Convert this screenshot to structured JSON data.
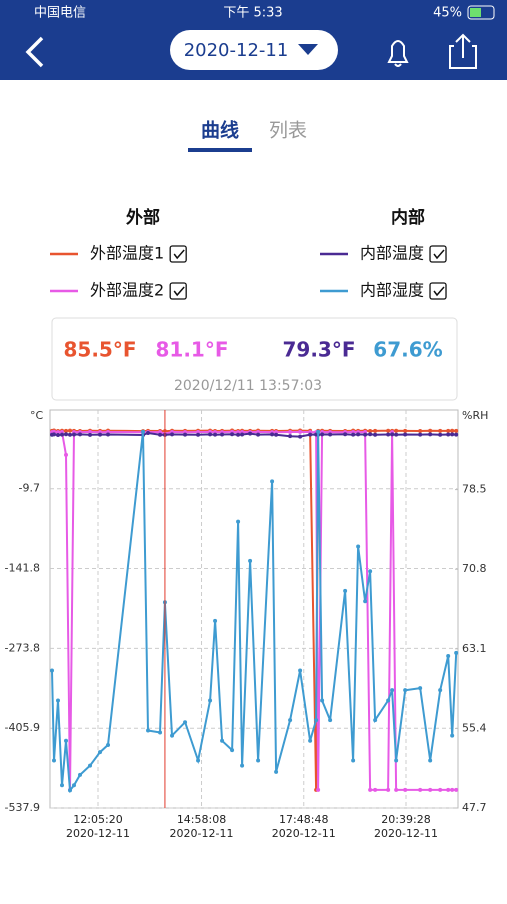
{
  "status_bar": {
    "carrier": "中国电信",
    "time": "下午 5:33",
    "battery": "45%"
  },
  "header": {
    "date": "2020-12-11"
  },
  "tabs": [
    "曲线",
    "列表"
  ],
  "legend": {
    "external_title": "外部",
    "internal_title": "内部"
  },
  "readout": {
    "values": [
      "85.5°F",
      "81.1°F",
      "79.3°F",
      "67.6%"
    ],
    "timestamp": "2020/12/11 13:57:03"
  },
  "chart_data": {
    "type": "line",
    "y_label": "°C",
    "y2_label": "%RH",
    "ylim": [
      -537.9,
      120.5
    ],
    "yticks": [
      -537.9,
      -405.9,
      -273.8,
      -141.8,
      -9.7
    ],
    "y2lim": [
      47.7,
      86.2
    ],
    "y2ticks": [
      47.7,
      55.4,
      63.1,
      70.8,
      78.5
    ],
    "xlim": [
      "2020-12-11T10:45:12",
      "2020-12-11T22:06:16"
    ],
    "xticks": [
      {
        "value": "2020-12-11T12:05:20",
        "label": "12:05:20",
        "sublabel": "2020-12-11"
      },
      {
        "value": "2020-12-11T14:58:08",
        "label": "14:58:08",
        "sublabel": "2020-12-11"
      },
      {
        "value": "2020-12-11T17:48:48",
        "label": "17:48:48",
        "sublabel": "2020-12-11"
      },
      {
        "value": "2020-12-11T20:39:28",
        "label": "20:39:28",
        "sublabel": "2020-12-11"
      }
    ],
    "grid": true,
    "cursor": "2020-12-11T13:57:03",
    "cursor_color": "#e0392b",
    "x": [
      "2020-12-11T10:48:32",
      "2020-12-11T10:51:53",
      "2020-12-11T10:58:34",
      "2020-12-11T11:05:14",
      "2020-12-11T11:11:55",
      "2020-12-11T11:18:36",
      "2020-12-11T11:25:17",
      "2020-12-11T11:35:18",
      "2020-12-11T11:52:00",
      "2020-12-11T12:08:42",
      "2020-12-11T12:22:04",
      "2020-12-11T13:20:31",
      "2020-12-11T13:28:52",
      "2020-12-11T13:48:54",
      "2020-12-11T13:57:03",
      "2020-12-11T14:08:56",
      "2020-12-11T14:30:39",
      "2020-12-11T14:52:22",
      "2020-12-11T15:12:24",
      "2020-12-11T15:20:45",
      "2020-12-11T15:32:26",
      "2020-12-11T15:49:08",
      "2020-12-11T15:59:10",
      "2020-12-11T16:05:50",
      "2020-12-11T16:19:12",
      "2020-12-11T16:32:34",
      "2020-12-11T16:55:56",
      "2020-12-11T17:02:37",
      "2020-12-11T17:26:00",
      "2020-12-11T17:42:42",
      "2020-12-11T17:59:24",
      "2020-12-11T18:09:25",
      "2020-12-11T18:12:46",
      "2020-12-11T18:19:26",
      "2020-12-11T18:32:48",
      "2020-12-11T18:57:51",
      "2020-12-11T19:11:13",
      "2020-12-11T19:19:34",
      "2020-12-11T19:31:15",
      "2020-12-11T19:39:36",
      "2020-12-11T19:47:57",
      "2020-12-11T20:09:40",
      "2020-12-11T20:16:20",
      "2020-12-11T20:23:01",
      "2020-12-11T20:38:03",
      "2020-12-11T21:03:06",
      "2020-12-11T21:19:48",
      "2020-12-11T21:36:30",
      "2020-12-11T21:49:52",
      "2020-12-11T21:56:32",
      "2020-12-11T22:03:13"
    ],
    "series": [
      {
        "name": "外部温度1",
        "color": "#e8542f",
        "values": [
          86,
          86.5,
          85.8,
          86.2,
          85.9,
          86.4,
          86,
          85.7,
          86.1,
          85.9,
          86.3,
          85.6,
          86,
          85.8,
          85.5,
          86.1,
          85.9,
          86.2,
          86.4,
          85.8,
          86,
          86.5,
          85.7,
          86.1,
          85.9,
          86.3,
          86,
          85.8,
          86.2,
          86.5,
          86.1,
          -508,
          85.9,
          86.2,
          86,
          85.7,
          86.3,
          85.9,
          86.1,
          85.8,
          86,
          86.2,
          85.9,
          86.1,
          86,
          85.8,
          86.2,
          86,
          85.9,
          86.1,
          86
        ]
      },
      {
        "name": "外部温度2",
        "color": "#e75ae6",
        "values": [
          84,
          84.5,
          83.8,
          84.2,
          46.2,
          -508,
          83.9,
          84,
          84.3,
          83.8,
          84.1,
          83.6,
          84,
          83.9,
          81.1,
          84.2,
          83.8,
          84.1,
          84.3,
          83.9,
          84,
          84.4,
          83.8,
          84.1,
          83.9,
          84.2,
          84,
          83.8,
          84.1,
          84.3,
          84,
          83.9,
          -508,
          84.1,
          84,
          83.8,
          84.2,
          83.9,
          84.1,
          -508,
          -508,
          -508,
          84,
          -508,
          -508,
          -508,
          -508,
          -508,
          -508,
          -508,
          -508
        ]
      },
      {
        "name": "内部温度",
        "color": "#4a2a93",
        "values": [
          79.5,
          80.1,
          79.2,
          79.8,
          80.3,
          79.6,
          79.9,
          80.2,
          79.4,
          79.8,
          80,
          79.1,
          82.5,
          79.6,
          79.3,
          80.1,
          79.8,
          79.5,
          80.2,
          79.7,
          79.9,
          80.4,
          79.6,
          80,
          81.5,
          79.8,
          80.1,
          79.5,
          77.2,
          76.5,
          79.8,
          80,
          79.6,
          80.2,
          79.9,
          80.4,
          79.7,
          80.1,
          79.8,
          80.3,
          79.6,
          79.9,
          80.2,
          79.7,
          80,
          79.8,
          80.1,
          79.6,
          79.9,
          80.2,
          79.8
        ]
      },
      {
        "name": "内部湿度",
        "color": "#3e9bd1",
        "axis": "y2",
        "values": [
          61,
          52.3,
          58.1,
          49.9,
          54.2,
          49.4,
          49.9,
          50.9,
          51.8,
          53.1,
          53.8,
          84.1,
          55.2,
          55,
          67.6,
          54.7,
          56,
          52.3,
          58.1,
          65.8,
          54.2,
          53.3,
          75.4,
          51.8,
          71.6,
          52.3,
          79.3,
          51.2,
          56.2,
          61,
          54.2,
          56.2,
          84.1,
          58.1,
          56.2,
          68.7,
          52.3,
          73,
          67.7,
          70.6,
          56.2,
          58.1,
          59.1,
          52.3,
          59.1,
          59.3,
          52.3,
          59.1,
          62.4,
          54.7,
          62.7
        ]
      }
    ]
  }
}
